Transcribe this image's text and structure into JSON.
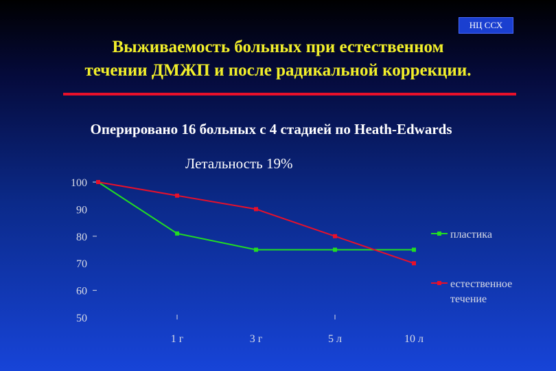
{
  "badge": "НЦ ССХ",
  "title_line1": "Выживаемость больных при естественном",
  "title_line2": "течении ДМЖП и после радикальной коррекции.",
  "subtitle": "Оперировано 16 больных с 4 стадией  по  Heath-Edwards",
  "mortality": "Летальность  19%",
  "colors": {
    "title": "#f2ef2a",
    "rule": "#e8102a",
    "plastika": "#22dd22",
    "natural": "#e8102a"
  },
  "chart_data": {
    "type": "line",
    "x": [
      "0",
      "1 г",
      "3 г",
      "5 л",
      "10 л"
    ],
    "x_tick_labels": [
      "1 г",
      "3 г",
      "5 л",
      "10 л"
    ],
    "series": [
      {
        "name": "пластика",
        "values": [
          100,
          81,
          75,
          75,
          75
        ]
      },
      {
        "name": "естественное течение",
        "values": [
          100,
          95,
          90,
          80,
          70
        ]
      }
    ],
    "ylim": [
      50,
      100
    ],
    "yticks": [
      "100",
      "90",
      "80",
      "70",
      "60",
      "50"
    ],
    "legend_position": "right",
    "grid": false
  }
}
